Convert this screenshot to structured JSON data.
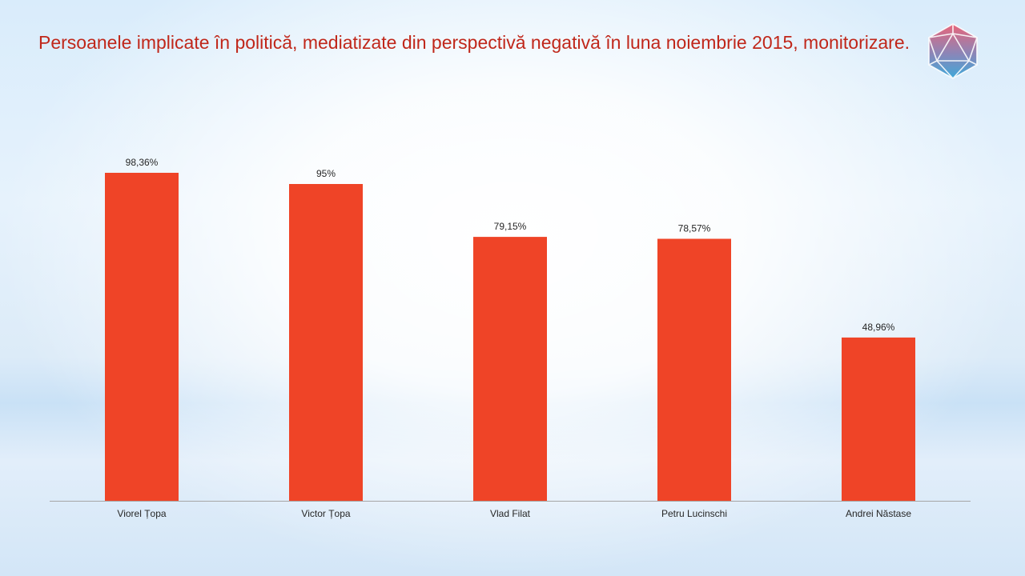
{
  "slide": {
    "title": "Persoanele implicate în politică, mediatizate din perspectivă negativă în luna noiembrie 2015, monitorizare."
  },
  "logo": {
    "icon": "icosahedron-logo-icon",
    "colors": [
      "#e86a7e",
      "#6a8fc6",
      "#4aa8d8"
    ]
  },
  "chart_data": {
    "type": "bar",
    "categories": [
      "Viorel Țopa",
      "Victor Țopa",
      "Vlad Filat",
      "Petru Lucinschi",
      "Andrei Năstase"
    ],
    "values": [
      98.36,
      95,
      79.15,
      78.57,
      48.96
    ],
    "data_labels": [
      "98,36%",
      "95%",
      "79,15%",
      "78,57%",
      "48,96%"
    ],
    "title": "",
    "xlabel": "",
    "ylabel": "",
    "ylim": [
      0,
      100
    ],
    "grid": false,
    "legend": "none",
    "bar_color": "#ef4427",
    "axis_color": "#a6a6a6"
  }
}
